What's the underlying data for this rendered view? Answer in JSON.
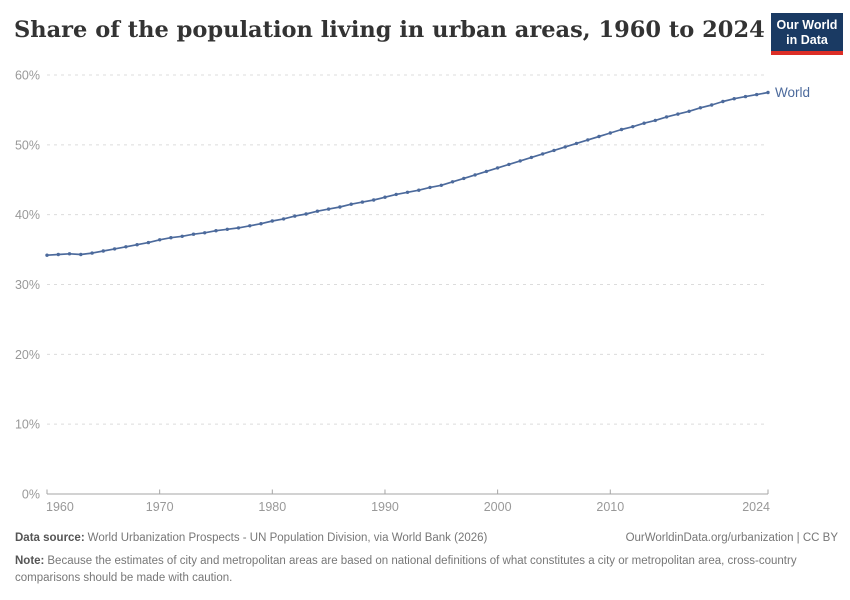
{
  "header": {
    "title": "Share of the population living in urban areas, 1960 to 2024",
    "logo_line1": "Our World",
    "logo_line2": "in Data"
  },
  "chart_data": {
    "type": "line",
    "title": "Share of the population living in urban areas, 1960 to 2024",
    "xlabel": "",
    "ylabel": "",
    "xlim": [
      1960,
      2024
    ],
    "ylim": [
      0,
      60
    ],
    "yticks": [
      0,
      10,
      20,
      30,
      40,
      50,
      60
    ],
    "ytick_suffix": "%",
    "xticks": [
      1960,
      1970,
      1980,
      1990,
      2000,
      2010,
      2024
    ],
    "grid": "dashed-horizontal",
    "legend": "label-at-line-end",
    "x": [
      1960,
      1961,
      1962,
      1963,
      1964,
      1965,
      1966,
      1967,
      1968,
      1969,
      1970,
      1971,
      1972,
      1973,
      1974,
      1975,
      1976,
      1977,
      1978,
      1979,
      1980,
      1981,
      1982,
      1983,
      1984,
      1985,
      1986,
      1987,
      1988,
      1989,
      1990,
      1991,
      1992,
      1993,
      1994,
      1995,
      1996,
      1997,
      1998,
      1999,
      2000,
      2001,
      2002,
      2003,
      2004,
      2005,
      2006,
      2007,
      2008,
      2009,
      2010,
      2011,
      2012,
      2013,
      2014,
      2015,
      2016,
      2017,
      2018,
      2019,
      2020,
      2021,
      2022,
      2023,
      2024
    ],
    "series": [
      {
        "name": "World",
        "color": "#4C6A9C",
        "values": [
          34.2,
          34.3,
          34.4,
          34.3,
          34.5,
          34.8,
          35.1,
          35.4,
          35.7,
          36.0,
          36.4,
          36.7,
          36.9,
          37.2,
          37.4,
          37.7,
          37.9,
          38.1,
          38.4,
          38.7,
          39.1,
          39.4,
          39.8,
          40.1,
          40.5,
          40.8,
          41.1,
          41.5,
          41.8,
          42.1,
          42.5,
          42.9,
          43.2,
          43.5,
          43.9,
          44.2,
          44.7,
          45.2,
          45.7,
          46.2,
          46.7,
          47.2,
          47.7,
          48.2,
          48.7,
          49.2,
          49.7,
          50.2,
          50.7,
          51.2,
          51.7,
          52.2,
          52.6,
          53.1,
          53.5,
          54.0,
          54.4,
          54.8,
          55.3,
          55.7,
          56.2,
          56.6,
          56.9,
          57.2,
          57.5
        ]
      }
    ]
  },
  "footer": {
    "data_source_label": "Data source:",
    "data_source_text": "World Urbanization Prospects - UN Population Division, via World Bank (2026)",
    "attribution": "OurWorldinData.org/urbanization | CC BY",
    "note_label": "Note:",
    "note_text": "Because the estimates of city and metropolitan areas are based on national definitions of what constitutes a city or metropolitan area, cross-country comparisons should be made with caution."
  },
  "colors": {
    "background": "#ffffff",
    "line": "#4C6A9C",
    "series_label": "#4C6A9C",
    "grid": "#dcdcdc",
    "axis": "#a5a5a5",
    "tick_label": "#999999",
    "title": "#333333",
    "footer_text": "#777777",
    "footer_bold": "#555555",
    "logo_bg": "#1a3a63",
    "logo_red": "#dc2e26"
  }
}
